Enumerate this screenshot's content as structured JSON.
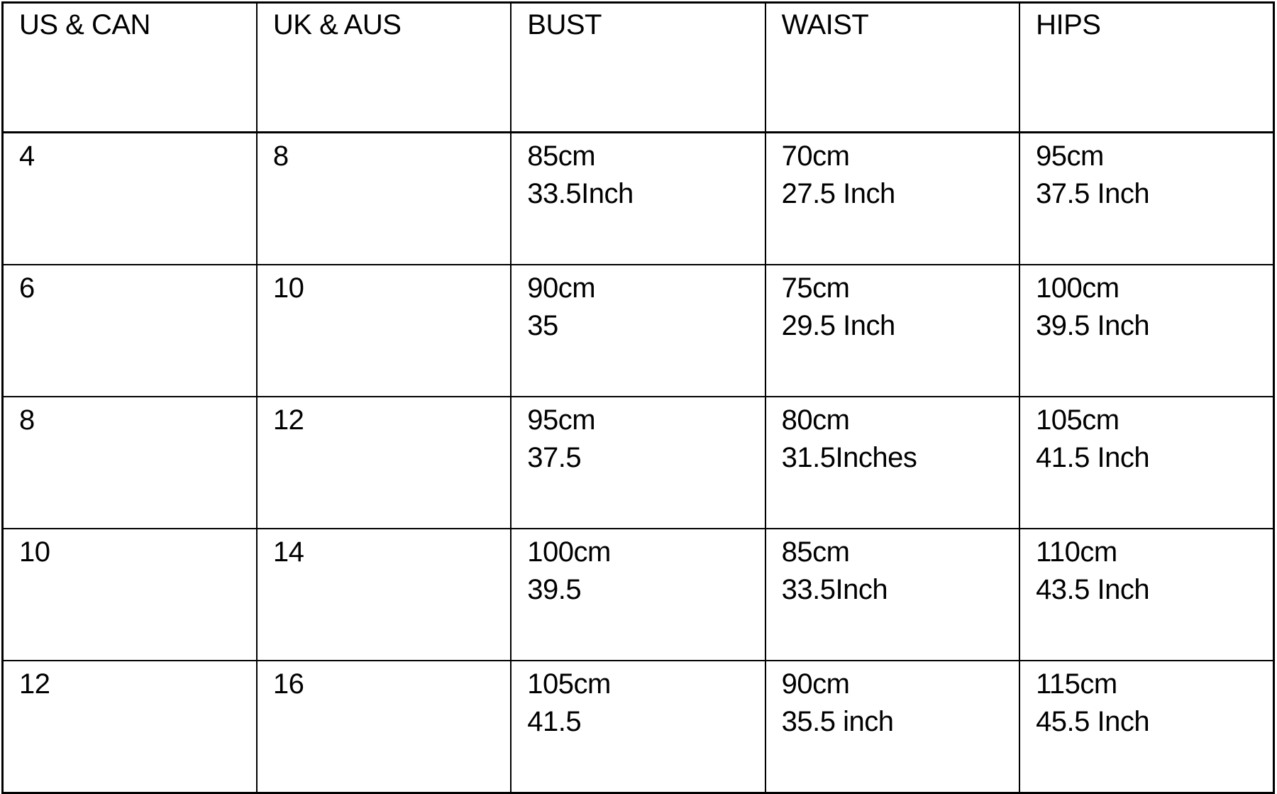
{
  "table": {
    "columns": [
      {
        "key": "us_can",
        "label": "US & CAN"
      },
      {
        "key": "uk_aus",
        "label": "UK & AUS"
      },
      {
        "key": "bust",
        "label": "BUST"
      },
      {
        "key": "waist",
        "label": "WAIST"
      },
      {
        "key": "hips",
        "label": "HIPS"
      }
    ],
    "rows": [
      {
        "us_can": "4",
        "uk_aus": "8",
        "bust": [
          "85cm",
          "33.5Inch"
        ],
        "waist": [
          "70cm",
          "27.5 Inch"
        ],
        "hips": [
          "95cm",
          "37.5 Inch"
        ]
      },
      {
        "us_can": "6",
        "uk_aus": "10",
        "bust": [
          "90cm",
          "35"
        ],
        "waist": [
          "75cm",
          "29.5 Inch"
        ],
        "hips": [
          "100cm",
          "39.5 Inch"
        ]
      },
      {
        "us_can": "8",
        "uk_aus": "12",
        "bust": [
          "95cm",
          "37.5"
        ],
        "waist": [
          "80cm",
          "31.5Inches"
        ],
        "hips": [
          "105cm",
          "41.5 Inch"
        ]
      },
      {
        "us_can": "10",
        "uk_aus": "14",
        "bust": [
          "100cm",
          "39.5"
        ],
        "waist": [
          "85cm",
          "33.5Inch"
        ],
        "hips": [
          "110cm",
          "43.5 Inch"
        ]
      },
      {
        "us_can": "12",
        "uk_aus": "16",
        "bust": [
          "105cm",
          "41.5"
        ],
        "waist": [
          "90cm",
          "35.5 inch"
        ],
        "hips": [
          "115cm",
          "45.5 Inch"
        ]
      }
    ]
  },
  "colors": {
    "text": "#000000",
    "border": "#000000",
    "background": "#ffffff"
  }
}
